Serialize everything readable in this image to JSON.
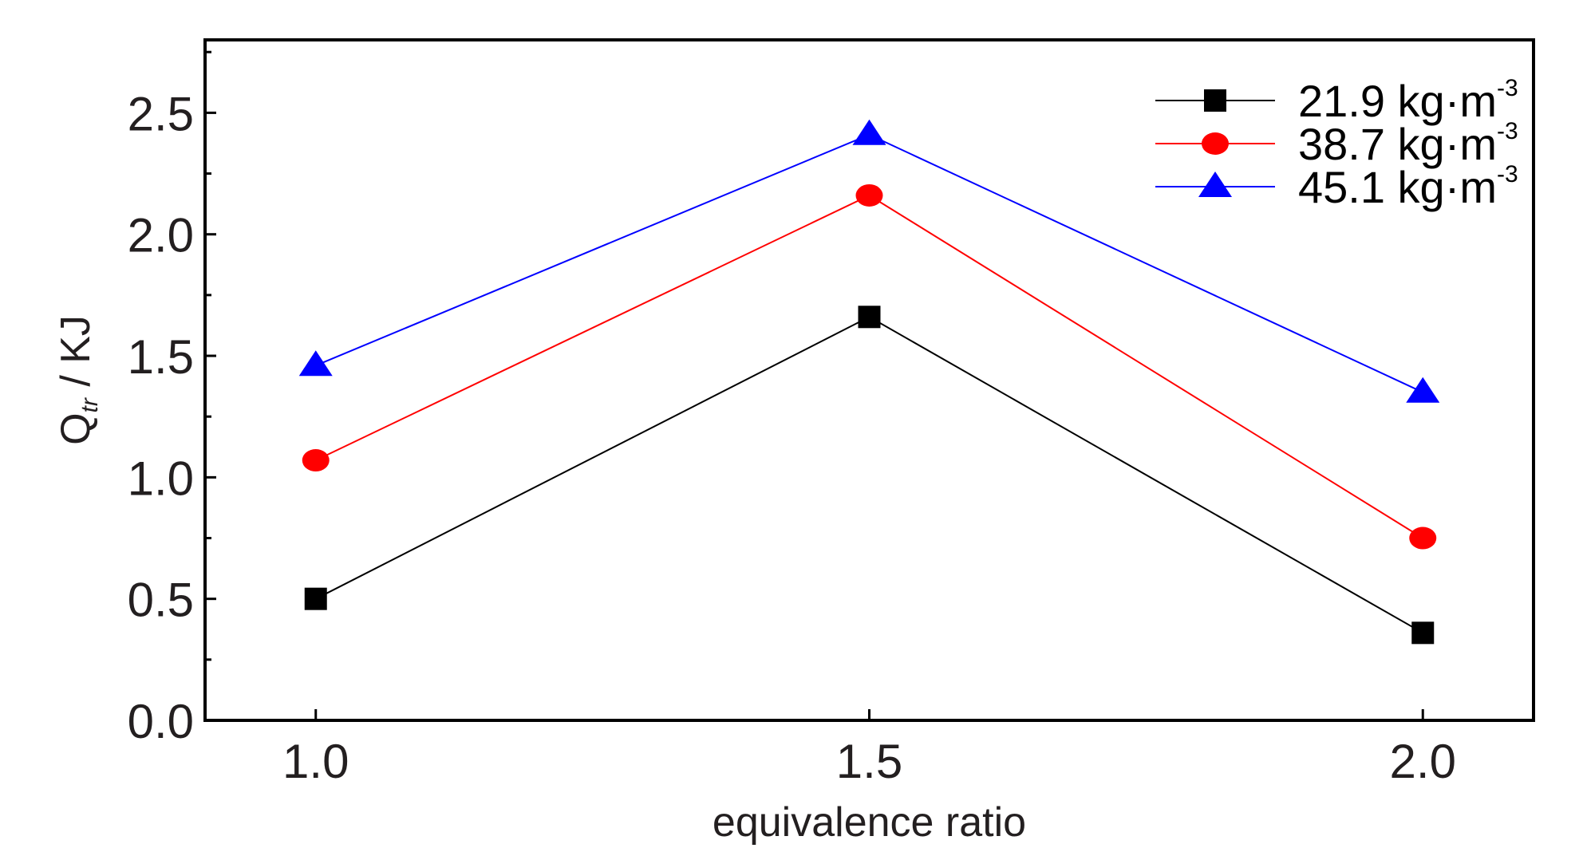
{
  "chart_data": {
    "type": "line",
    "title": "",
    "xlabel": "equivalence ratio",
    "ylabel": {
      "main": "Q",
      "subscript": "tr",
      "suffix": " / KJ"
    },
    "x": [
      1.0,
      1.5,
      2.0
    ],
    "x_tick_labels": [
      "1.0",
      "1.5",
      "2.0"
    ],
    "y_ticks": [
      0.0,
      0.5,
      1.0,
      1.5,
      2.0,
      2.5
    ],
    "y_tick_labels": [
      "0.0",
      "0.5",
      "1.0",
      "1.5",
      "2.0",
      "2.5"
    ],
    "xlim": [
      0.9,
      2.1
    ],
    "ylim": [
      0.0,
      2.8
    ],
    "grid": false,
    "legend_position": "top-right",
    "series": [
      {
        "name": "21.9 kg·m",
        "name_superscript": "-3",
        "values": [
          0.5,
          1.66,
          0.36
        ],
        "color": "#000000",
        "marker": "square"
      },
      {
        "name": "38.7 kg·m",
        "name_superscript": "-3",
        "values": [
          1.07,
          2.16,
          0.75
        ],
        "color": "#ff0000",
        "marker": "circle"
      },
      {
        "name": "45.1 kg·m",
        "name_superscript": "-3",
        "values": [
          1.46,
          2.41,
          1.35
        ],
        "color": "#0000ff",
        "marker": "triangle"
      }
    ]
  }
}
